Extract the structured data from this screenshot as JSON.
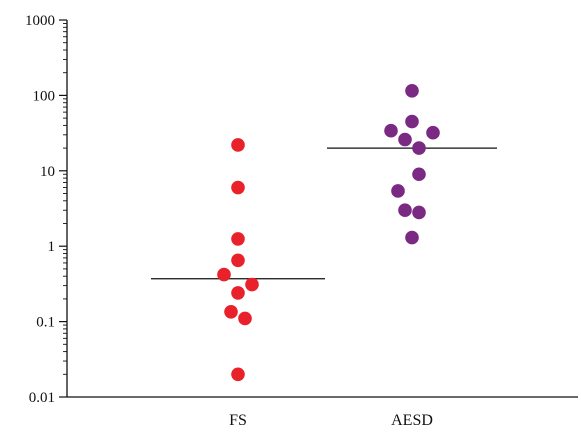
{
  "chart_data": {
    "type": "scatter",
    "yscale": "log",
    "ylim": [
      0.01,
      1000
    ],
    "yticks": [
      {
        "value": 0.01,
        "label": "0.01"
      },
      {
        "value": 0.1,
        "label": "0.1"
      },
      {
        "value": 1,
        "label": "1"
      },
      {
        "value": 10,
        "label": "10"
      },
      {
        "value": 100,
        "label": "100"
      },
      {
        "value": 1000,
        "label": "1000"
      }
    ],
    "categories": [
      "FS",
      "AESD"
    ],
    "grid": false,
    "series": [
      {
        "category": "FS",
        "color": "#e8212a",
        "median": 0.37,
        "points": [
          {
            "offset": 0.0,
            "y": 22
          },
          {
            "offset": 0.0,
            "y": 6
          },
          {
            "offset": 0.0,
            "y": 1.25
          },
          {
            "offset": 0.0,
            "y": 0.65
          },
          {
            "offset": -0.2,
            "y": 0.42
          },
          {
            "offset": 0.2,
            "y": 0.31
          },
          {
            "offset": 0.0,
            "y": 0.24
          },
          {
            "offset": -0.1,
            "y": 0.135
          },
          {
            "offset": 0.1,
            "y": 0.11
          },
          {
            "offset": 0.0,
            "y": 0.02
          }
        ]
      },
      {
        "category": "AESD",
        "color": "#7b2a84",
        "median": 20,
        "points": [
          {
            "offset": 0.0,
            "y": 115
          },
          {
            "offset": 0.0,
            "y": 45
          },
          {
            "offset": -0.3,
            "y": 34
          },
          {
            "offset": 0.3,
            "y": 32
          },
          {
            "offset": -0.1,
            "y": 26
          },
          {
            "offset": 0.1,
            "y": 20
          },
          {
            "offset": 0.1,
            "y": 9
          },
          {
            "offset": -0.2,
            "y": 5.4
          },
          {
            "offset": -0.1,
            "y": 3
          },
          {
            "offset": 0.1,
            "y": 2.8
          },
          {
            "offset": 0.0,
            "y": 1.3
          }
        ]
      }
    ]
  }
}
